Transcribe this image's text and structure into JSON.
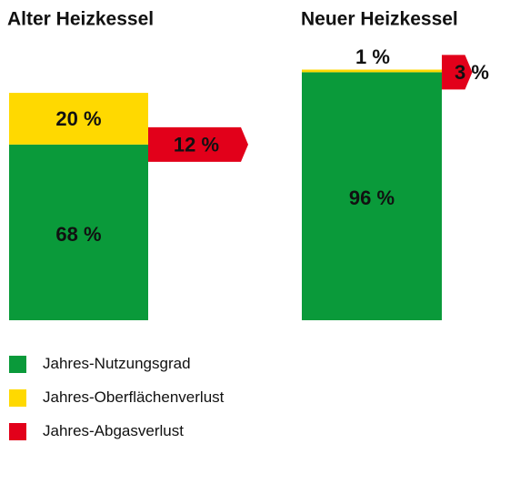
{
  "chart_data": [
    {
      "type": "bar",
      "title": "Alter Heizkessel",
      "stack": [
        {
          "name": "Jahres-Nutzungsgrad",
          "value": 68,
          "label": "68 %"
        },
        {
          "name": "Jahres-Oberflächenverlust",
          "value": 20,
          "label": "20 %"
        }
      ],
      "arrow": {
        "name": "Jahres-Abgasverlust",
        "value": 12,
        "label": "12 %"
      }
    },
    {
      "type": "bar",
      "title": "Neuer Heizkessel",
      "stack": [
        {
          "name": "Jahres-Nutzungsgrad",
          "value": 96,
          "label": "96 %"
        },
        {
          "name": "Jahres-Oberflächenverlust",
          "value": 1,
          "label": "1 %"
        }
      ],
      "arrow": {
        "name": "Jahres-Abgasverlust",
        "value": 3,
        "label": "3 %"
      }
    }
  ],
  "legend": [
    {
      "label": "Jahres-Nutzungsgrad",
      "color": "#0a9a3a"
    },
    {
      "label": "Jahres-Oberflächenverlust",
      "color": "#ffd900"
    },
    {
      "label": "Jahres-Abgasverlust",
      "color": "#e2001a"
    }
  ],
  "colors": {
    "Jahres-Nutzungsgrad": "#0a9a3a",
    "Jahres-Oberflächenverlust": "#ffd900",
    "Jahres-Abgasverlust": "#e2001a"
  }
}
